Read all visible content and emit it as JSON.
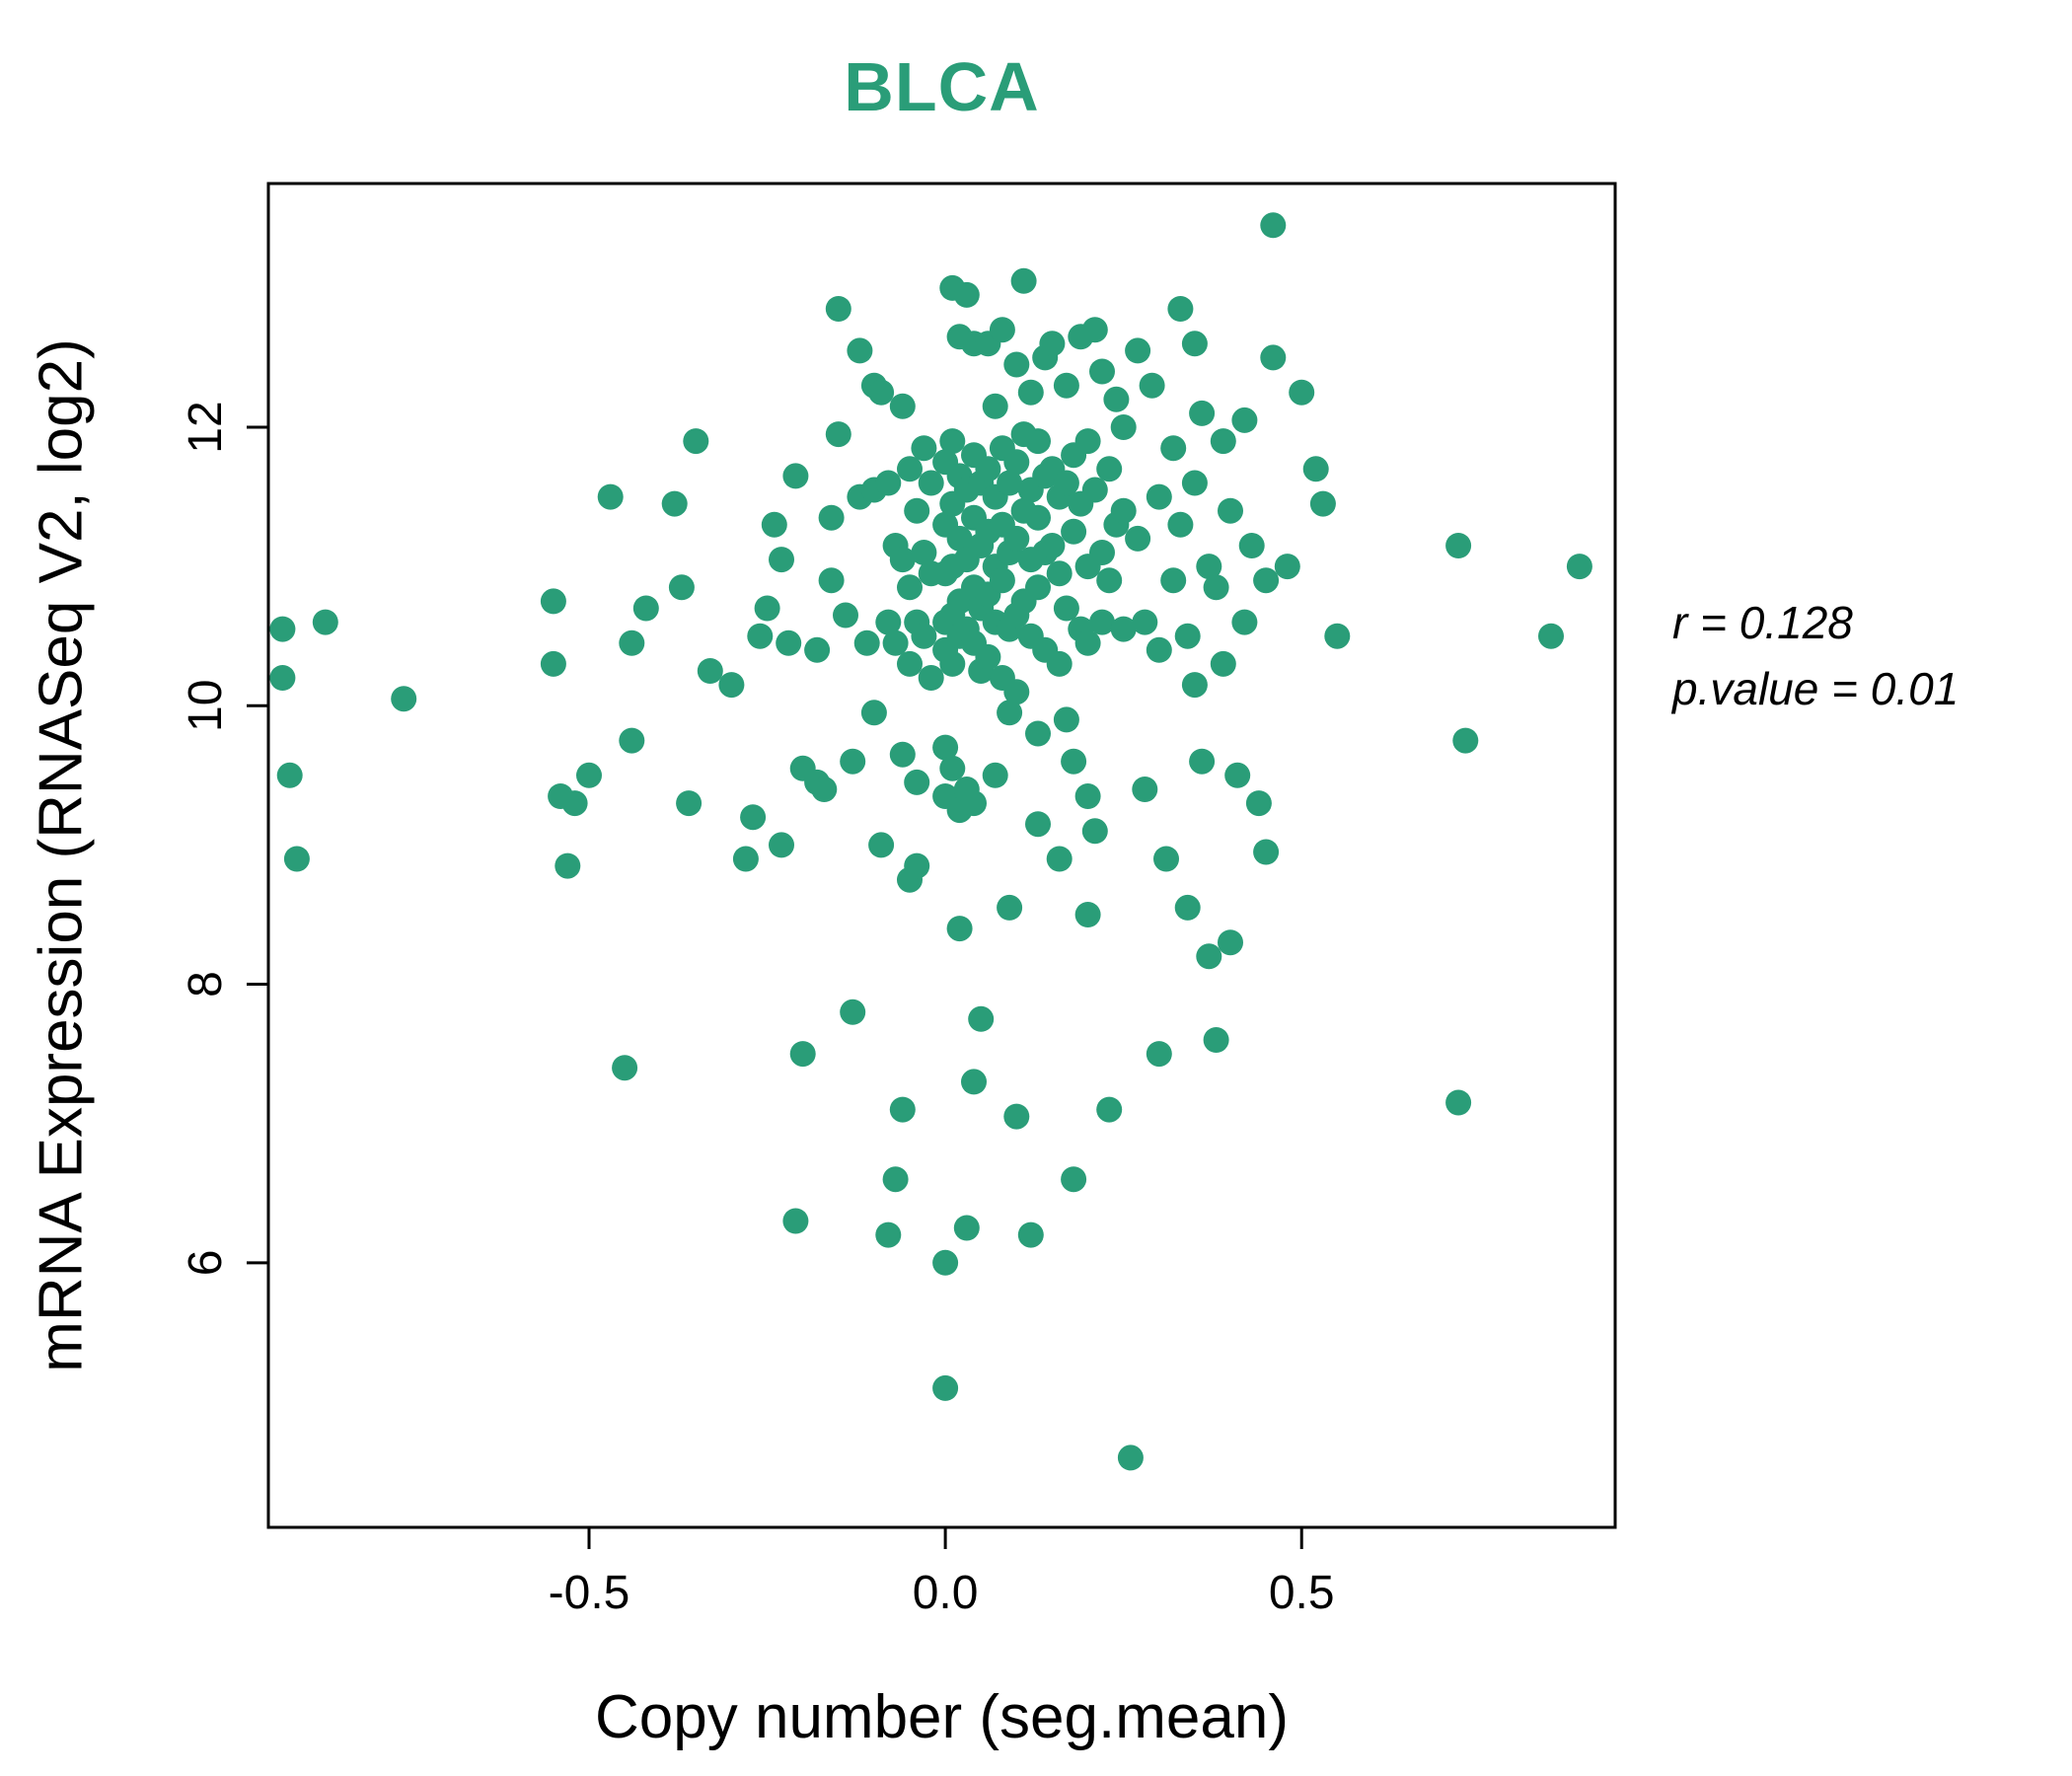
{
  "accent_color": "#2a9d78",
  "chart_data": {
    "type": "scatter",
    "title": "BLCA",
    "title_color": "#2a9d78",
    "xlabel": "Copy number (seg.mean)",
    "ylabel": "mRNA Expression (RNASeq V2, log2)",
    "annotation": {
      "r_label": "r = 0.128",
      "p_label": "p.value = 0.01"
    },
    "point_color": "#2a9d78",
    "grid": false,
    "legend": "none",
    "xlim": [
      -0.95,
      0.94
    ],
    "ylim": [
      4.1,
      13.75
    ],
    "x_ticks": {
      "values": [
        -0.5,
        0.0,
        0.5
      ],
      "labels": [
        "-0.5",
        "0.0",
        "0.5"
      ]
    },
    "y_ticks": {
      "values": [
        6,
        8,
        10,
        12
      ],
      "labels": [
        "6",
        "8",
        "10",
        "12"
      ]
    },
    "points": [
      [
        -0.93,
        10.55
      ],
      [
        -0.93,
        10.2
      ],
      [
        -0.92,
        9.5
      ],
      [
        -0.91,
        8.9
      ],
      [
        -0.87,
        10.6
      ],
      [
        -0.76,
        10.05
      ],
      [
        -0.55,
        10.75
      ],
      [
        -0.55,
        10.3
      ],
      [
        -0.54,
        9.35
      ],
      [
        -0.53,
        8.85
      ],
      [
        -0.52,
        9.3
      ],
      [
        -0.5,
        9.5
      ],
      [
        -0.47,
        11.5
      ],
      [
        -0.45,
        7.4
      ],
      [
        -0.44,
        10.45
      ],
      [
        -0.44,
        9.75
      ],
      [
        -0.42,
        10.7
      ],
      [
        -0.38,
        11.45
      ],
      [
        -0.37,
        10.85
      ],
      [
        -0.36,
        9.3
      ],
      [
        -0.35,
        11.9
      ],
      [
        -0.33,
        10.25
      ],
      [
        -0.3,
        10.15
      ],
      [
        -0.28,
        8.9
      ],
      [
        -0.27,
        9.2
      ],
      [
        -0.26,
        10.5
      ],
      [
        -0.25,
        10.7
      ],
      [
        -0.24,
        11.3
      ],
      [
        -0.23,
        11.05
      ],
      [
        -0.23,
        9.0
      ],
      [
        -0.22,
        10.45
      ],
      [
        -0.21,
        11.65
      ],
      [
        -0.21,
        6.3
      ],
      [
        -0.2,
        9.55
      ],
      [
        -0.2,
        7.5
      ],
      [
        -0.18,
        10.4
      ],
      [
        -0.18,
        9.45
      ],
      [
        -0.17,
        9.4
      ],
      [
        -0.16,
        11.35
      ],
      [
        -0.16,
        10.9
      ],
      [
        -0.15,
        12.85
      ],
      [
        -0.15,
        11.95
      ],
      [
        -0.14,
        10.65
      ],
      [
        -0.13,
        9.6
      ],
      [
        -0.13,
        7.8
      ],
      [
        -0.12,
        12.55
      ],
      [
        -0.12,
        11.5
      ],
      [
        -0.11,
        10.45
      ],
      [
        -0.1,
        12.3
      ],
      [
        -0.1,
        11.55
      ],
      [
        -0.1,
        9.95
      ],
      [
        -0.09,
        12.25
      ],
      [
        -0.09,
        9.0
      ],
      [
        -0.08,
        11.6
      ],
      [
        -0.08,
        10.6
      ],
      [
        -0.08,
        6.2
      ],
      [
        -0.07,
        11.15
      ],
      [
        -0.07,
        10.45
      ],
      [
        -0.07,
        6.6
      ],
      [
        -0.06,
        12.15
      ],
      [
        -0.06,
        11.05
      ],
      [
        -0.06,
        9.65
      ],
      [
        -0.06,
        7.1
      ],
      [
        -0.05,
        11.7
      ],
      [
        -0.05,
        10.85
      ],
      [
        -0.05,
        10.3
      ],
      [
        -0.05,
        8.75
      ],
      [
        -0.04,
        11.4
      ],
      [
        -0.04,
        10.6
      ],
      [
        -0.04,
        9.45
      ],
      [
        -0.04,
        8.85
      ],
      [
        -0.03,
        11.85
      ],
      [
        -0.03,
        11.1
      ],
      [
        -0.03,
        10.5
      ],
      [
        -0.02,
        11.6
      ],
      [
        -0.02,
        10.95
      ],
      [
        -0.02,
        10.2
      ],
      [
        0.0,
        11.75
      ],
      [
        0.0,
        11.3
      ],
      [
        0.0,
        10.95
      ],
      [
        0.0,
        10.6
      ],
      [
        0.0,
        10.4
      ],
      [
        0.0,
        9.7
      ],
      [
        0.0,
        9.35
      ],
      [
        0.0,
        6.0
      ],
      [
        0.0,
        5.1
      ],
      [
        0.01,
        13.0
      ],
      [
        0.01,
        11.9
      ],
      [
        0.01,
        11.45
      ],
      [
        0.01,
        11.0
      ],
      [
        0.01,
        10.65
      ],
      [
        0.01,
        10.3
      ],
      [
        0.01,
        9.55
      ],
      [
        0.02,
        12.65
      ],
      [
        0.02,
        11.65
      ],
      [
        0.02,
        11.2
      ],
      [
        0.02,
        10.75
      ],
      [
        0.02,
        10.5
      ],
      [
        0.02,
        9.25
      ],
      [
        0.02,
        8.4
      ],
      [
        0.03,
        12.95
      ],
      [
        0.03,
        11.55
      ],
      [
        0.03,
        11.05
      ],
      [
        0.03,
        10.55
      ],
      [
        0.03,
        9.4
      ],
      [
        0.03,
        6.25
      ],
      [
        0.04,
        12.6
      ],
      [
        0.04,
        11.8
      ],
      [
        0.04,
        11.35
      ],
      [
        0.04,
        10.85
      ],
      [
        0.04,
        10.45
      ],
      [
        0.04,
        9.3
      ],
      [
        0.04,
        7.3
      ],
      [
        0.05,
        11.6
      ],
      [
        0.05,
        11.15
      ],
      [
        0.05,
        10.7
      ],
      [
        0.05,
        10.25
      ],
      [
        0.05,
        7.75
      ],
      [
        0.06,
        12.6
      ],
      [
        0.06,
        11.7
      ],
      [
        0.06,
        11.25
      ],
      [
        0.06,
        10.8
      ],
      [
        0.06,
        10.35
      ],
      [
        0.07,
        12.15
      ],
      [
        0.07,
        11.5
      ],
      [
        0.07,
        11.0
      ],
      [
        0.07,
        10.6
      ],
      [
        0.07,
        9.5
      ],
      [
        0.08,
        12.7
      ],
      [
        0.08,
        11.85
      ],
      [
        0.08,
        11.3
      ],
      [
        0.08,
        10.9
      ],
      [
        0.08,
        10.2
      ],
      [
        0.09,
        11.6
      ],
      [
        0.09,
        11.1
      ],
      [
        0.09,
        10.55
      ],
      [
        0.09,
        9.95
      ],
      [
        0.09,
        8.55
      ],
      [
        0.1,
        12.45
      ],
      [
        0.1,
        11.75
      ],
      [
        0.1,
        11.2
      ],
      [
        0.1,
        10.65
      ],
      [
        0.1,
        10.1
      ],
      [
        0.1,
        7.05
      ],
      [
        0.11,
        13.05
      ],
      [
        0.11,
        11.95
      ],
      [
        0.11,
        11.4
      ],
      [
        0.11,
        10.75
      ],
      [
        0.12,
        12.25
      ],
      [
        0.12,
        11.55
      ],
      [
        0.12,
        11.05
      ],
      [
        0.12,
        10.5
      ],
      [
        0.12,
        6.2
      ],
      [
        0.13,
        11.9
      ],
      [
        0.13,
        11.35
      ],
      [
        0.13,
        10.85
      ],
      [
        0.13,
        9.8
      ],
      [
        0.13,
        9.15
      ],
      [
        0.14,
        12.5
      ],
      [
        0.14,
        11.65
      ],
      [
        0.14,
        11.1
      ],
      [
        0.14,
        10.4
      ],
      [
        0.15,
        12.6
      ],
      [
        0.15,
        11.7
      ],
      [
        0.15,
        11.15
      ],
      [
        0.16,
        11.5
      ],
      [
        0.16,
        10.95
      ],
      [
        0.16,
        10.3
      ],
      [
        0.16,
        8.9
      ],
      [
        0.17,
        12.3
      ],
      [
        0.17,
        11.6
      ],
      [
        0.17,
        10.7
      ],
      [
        0.17,
        9.9
      ],
      [
        0.18,
        11.8
      ],
      [
        0.18,
        11.25
      ],
      [
        0.18,
        9.6
      ],
      [
        0.18,
        6.6
      ],
      [
        0.19,
        12.65
      ],
      [
        0.19,
        11.45
      ],
      [
        0.19,
        10.55
      ],
      [
        0.2,
        11.9
      ],
      [
        0.2,
        11.0
      ],
      [
        0.2,
        10.45
      ],
      [
        0.2,
        9.35
      ],
      [
        0.2,
        8.5
      ],
      [
        0.21,
        12.7
      ],
      [
        0.21,
        11.55
      ],
      [
        0.21,
        9.1
      ],
      [
        0.22,
        12.4
      ],
      [
        0.22,
        11.1
      ],
      [
        0.22,
        10.6
      ],
      [
        0.23,
        11.7
      ],
      [
        0.23,
        10.9
      ],
      [
        0.23,
        7.1
      ],
      [
        0.24,
        12.2
      ],
      [
        0.24,
        11.3
      ],
      [
        0.25,
        12.0
      ],
      [
        0.25,
        11.4
      ],
      [
        0.25,
        10.55
      ],
      [
        0.26,
        4.6
      ],
      [
        0.27,
        12.55
      ],
      [
        0.27,
        11.2
      ],
      [
        0.28,
        10.6
      ],
      [
        0.28,
        9.4
      ],
      [
        0.29,
        12.3
      ],
      [
        0.3,
        11.5
      ],
      [
        0.3,
        10.4
      ],
      [
        0.3,
        7.5
      ],
      [
        0.31,
        8.9
      ],
      [
        0.32,
        11.85
      ],
      [
        0.32,
        10.9
      ],
      [
        0.33,
        12.85
      ],
      [
        0.33,
        11.3
      ],
      [
        0.34,
        10.5
      ],
      [
        0.34,
        8.55
      ],
      [
        0.35,
        12.6
      ],
      [
        0.35,
        11.6
      ],
      [
        0.35,
        10.15
      ],
      [
        0.36,
        12.1
      ],
      [
        0.36,
        9.6
      ],
      [
        0.37,
        11.0
      ],
      [
        0.37,
        8.2
      ],
      [
        0.38,
        10.85
      ],
      [
        0.38,
        7.6
      ],
      [
        0.39,
        11.9
      ],
      [
        0.39,
        10.3
      ],
      [
        0.4,
        11.4
      ],
      [
        0.4,
        8.3
      ],
      [
        0.41,
        9.5
      ],
      [
        0.42,
        12.05
      ],
      [
        0.42,
        10.6
      ],
      [
        0.43,
        11.15
      ],
      [
        0.44,
        9.3
      ],
      [
        0.45,
        10.9
      ],
      [
        0.45,
        8.95
      ],
      [
        0.46,
        13.45
      ],
      [
        0.46,
        12.5
      ],
      [
        0.48,
        11.0
      ],
      [
        0.5,
        12.25
      ],
      [
        0.52,
        11.7
      ],
      [
        0.53,
        11.45
      ],
      [
        0.55,
        10.5
      ],
      [
        0.72,
        11.15
      ],
      [
        0.72,
        7.15
      ],
      [
        0.73,
        9.75
      ],
      [
        0.85,
        10.5
      ],
      [
        0.89,
        11.0
      ]
    ]
  }
}
